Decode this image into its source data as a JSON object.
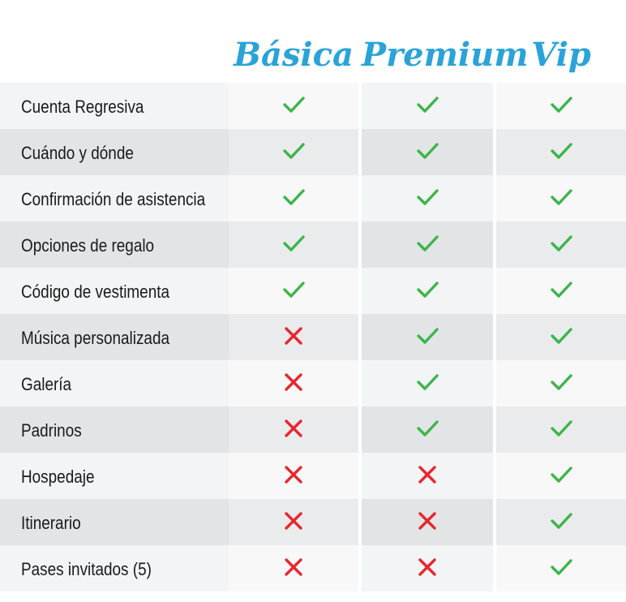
{
  "plans": [
    "Básica",
    "Premium",
    "Vip"
  ],
  "colors": {
    "check": "#3cb54a",
    "cross": "#e8262d",
    "plan_title": "#2aa3d8"
  },
  "features": [
    {
      "label": "Cuenta Regresiva",
      "included": [
        true,
        true,
        true
      ]
    },
    {
      "label": "Cuándo y dónde",
      "included": [
        true,
        true,
        true
      ]
    },
    {
      "label": "Confirmación de asistencia",
      "included": [
        true,
        true,
        true
      ]
    },
    {
      "label": "Opciones de regalo",
      "included": [
        true,
        true,
        true
      ]
    },
    {
      "label": "Código de vestimenta",
      "included": [
        true,
        true,
        true
      ]
    },
    {
      "label": "Música personalizada",
      "included": [
        false,
        true,
        true
      ]
    },
    {
      "label": "Galería",
      "included": [
        false,
        true,
        true
      ]
    },
    {
      "label": "Padrinos",
      "included": [
        false,
        true,
        true
      ]
    },
    {
      "label": "Hospedaje",
      "included": [
        false,
        false,
        true
      ]
    },
    {
      "label": "Itinerario",
      "included": [
        false,
        false,
        true
      ]
    },
    {
      "label": "Pases invitados (5)",
      "included": [
        false,
        false,
        true
      ]
    }
  ]
}
